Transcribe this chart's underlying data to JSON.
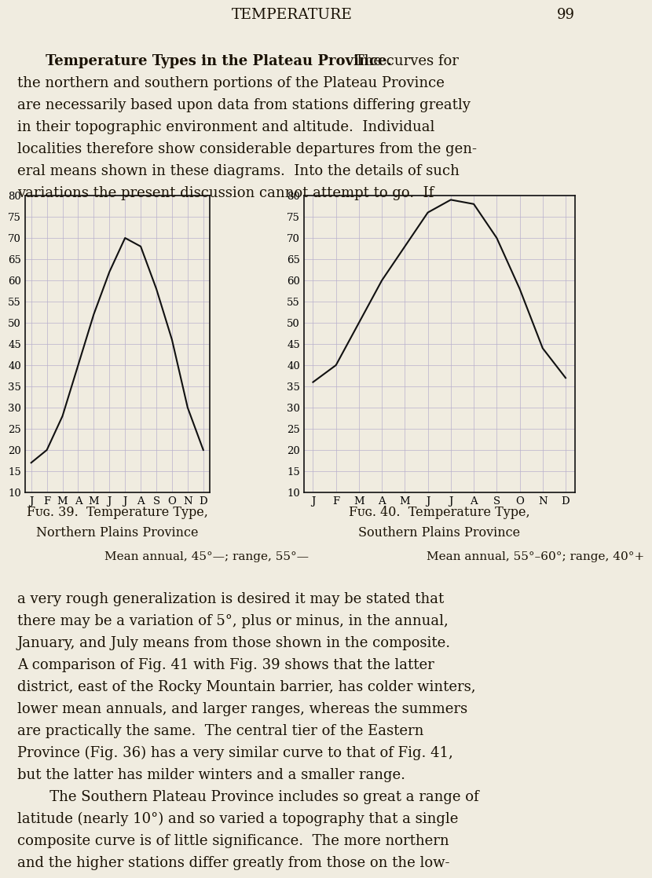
{
  "background_color": "#f0ece0",
  "page_title": "TEMPERATURE",
  "page_number": "99",
  "fig39": {
    "title_line1": "Fig. 39.  Temperature Type,",
    "title_line2": "Northern Plains Province",
    "caption": "Mean annual, 45°—; range, 55°—",
    "months": [
      "J",
      "F",
      "M",
      "A",
      "M",
      "J",
      "J",
      "A",
      "S",
      "O",
      "N",
      "D"
    ],
    "values": [
      17,
      20,
      28,
      40,
      52,
      62,
      70,
      68,
      58,
      46,
      30,
      20
    ],
    "ylim": [
      10,
      80
    ],
    "yticks": [
      10,
      15,
      20,
      25,
      30,
      35,
      40,
      45,
      50,
      55,
      60,
      65,
      70,
      75,
      80
    ]
  },
  "fig40": {
    "title_line1": "Fig. 40.  Temperature Type,",
    "title_line2": "Southern Plains Province",
    "caption": "Mean annual, 55°–60°; range, 40°+",
    "months": [
      "J",
      "F",
      "M",
      "A",
      "M",
      "J",
      "J",
      "A",
      "S",
      "O",
      "N",
      "D"
    ],
    "values": [
      36,
      40,
      50,
      60,
      68,
      76,
      79,
      78,
      70,
      58,
      44,
      37
    ],
    "ylim": [
      10,
      80
    ],
    "yticks": [
      10,
      15,
      20,
      25,
      30,
      35,
      40,
      45,
      50,
      55,
      60,
      65,
      70,
      75,
      80
    ]
  },
  "top_text_lines": [
    {
      "text": "Temperature Types in the Plateau Province.",
      "bold": true,
      "indent": true,
      "inline_after": " The curves for"
    },
    {
      "text": "the northern and southern portions of the Plateau Province",
      "bold": false,
      "indent": false
    },
    {
      "text": "are necessarily based upon data from stations differing greatly",
      "bold": false,
      "indent": false
    },
    {
      "text": "in their topographic environment and altitude.  Individual",
      "bold": false,
      "indent": false
    },
    {
      "text": "localities therefore show considerable departures from the gen-",
      "bold": false,
      "indent": false
    },
    {
      "text": "eral means shown in these diagrams.  Into the details of such",
      "bold": false,
      "indent": false
    },
    {
      "text": "variations the present discussion cannot attempt to go.  If",
      "bold": false,
      "indent": false
    }
  ],
  "bottom_text_lines": [
    {
      "text": "a very rough generalization is desired it may be stated that",
      "indent": false
    },
    {
      "text": "there may be a variation of 5°, plus or minus, in the annual,",
      "indent": false
    },
    {
      "text": "January, and July means from those shown in the composite.",
      "indent": false
    },
    {
      "text": "A comparison of Fig. 41 with Fig. 39 shows that the latter",
      "indent": false
    },
    {
      "text": "district, east of the Rocky Mountain barrier, has colder winters,",
      "indent": false
    },
    {
      "text": "lower mean annuals, and larger ranges, whereas the summers",
      "indent": false
    },
    {
      "text": "are practically the same.  The central tier of the Eastern",
      "indent": false
    },
    {
      "text": "Province (Fig. 36) has a very similar curve to that of Fig. 41,",
      "indent": false
    },
    {
      "text": "but the latter has milder winters and a smaller range.",
      "indent": false
    },
    {
      "text": "   The Southern Plateau Province includes so great a range of",
      "indent": true
    },
    {
      "text": "latitude (nearly 10°) and so varied a topography that a single",
      "indent": false
    },
    {
      "text": "composite curve is of little significance.  The more northern",
      "indent": false
    },
    {
      "text": "and the higher stations differ greatly from those on the low-",
      "indent": false
    }
  ],
  "grid_color": "#b8b0cc",
  "curve_color": "#111111",
  "axis_color": "#111111",
  "text_color": "#1a1205"
}
